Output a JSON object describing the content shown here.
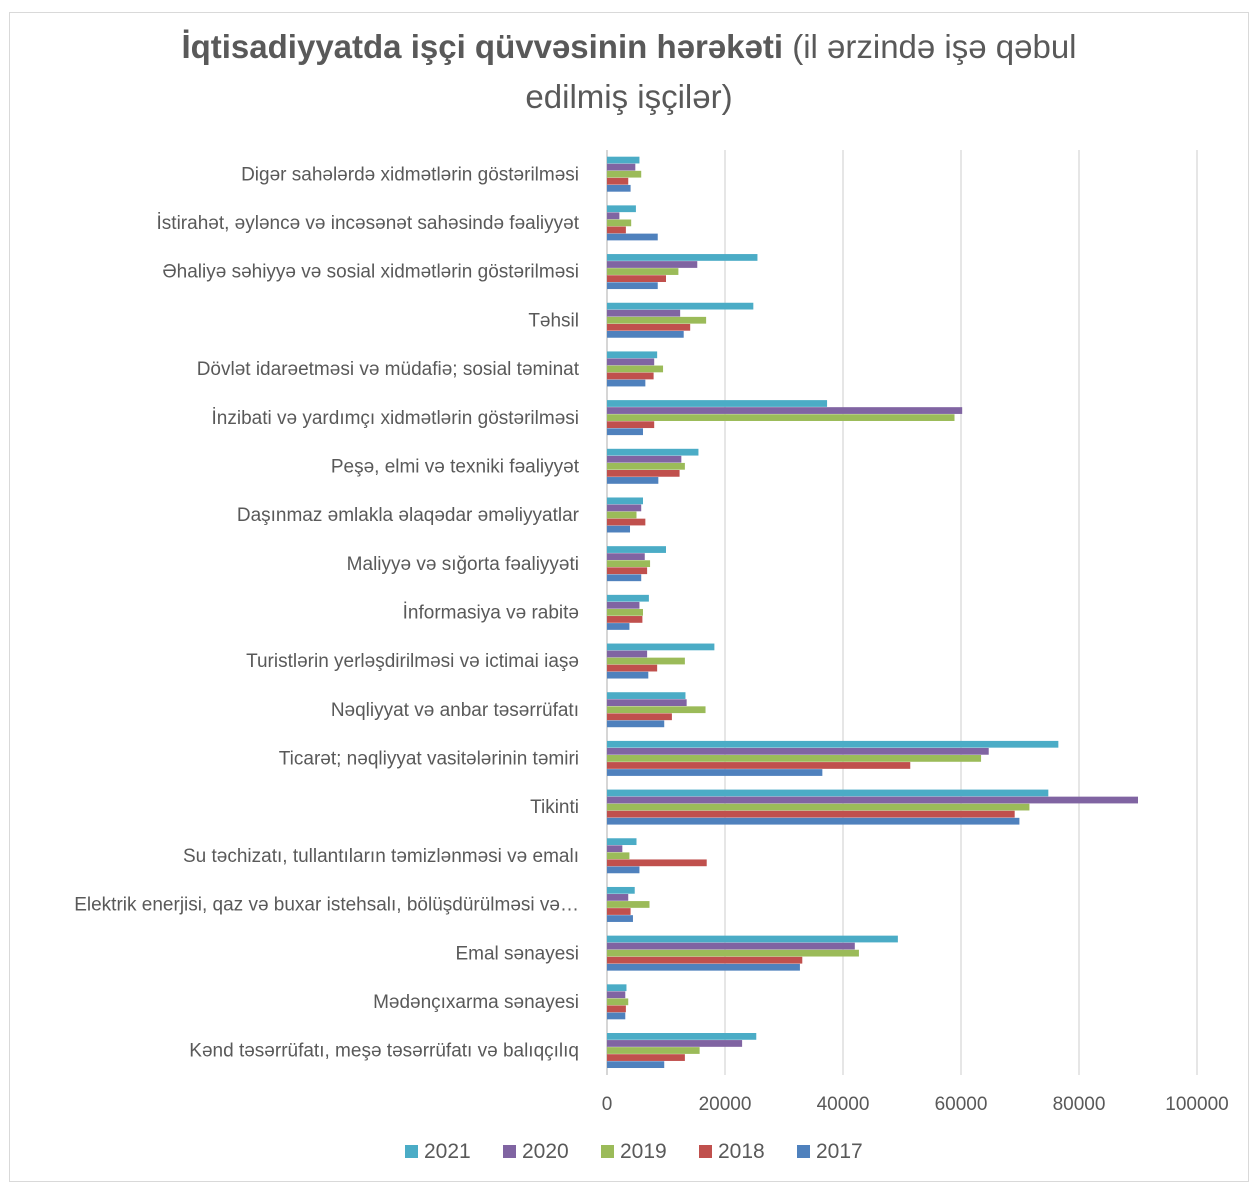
{
  "chart_data": {
    "type": "bar",
    "orientation": "horizontal",
    "title_bold": "İqtisadiyyatda işçi qüvvəsinin hərəkəti",
    "title_rest_line1": " (il ərzində işə qəbul",
    "title_rest_line2": "edilmiş işçilər)",
    "xlim": [
      0,
      100000
    ],
    "x_ticks": [
      "0",
      "20000",
      "40000",
      "60000",
      "80000",
      "100000"
    ],
    "x_tick_values": [
      0,
      20000,
      40000,
      60000,
      80000,
      100000
    ],
    "grid": "vertical",
    "legend_position": "bottom",
    "categories": [
      "Digər sahələrdə xidmətlərin göstərilməsi",
      "İstirahət, əyləncə və incəsənət sahəsində fəaliyyət",
      "Əhaliyə səhiyyə və sosial xidmətlərin göstərilməsi",
      "Təhsil",
      "Dövlət idarəetməsi və müdafiə; sosial təminat",
      "İnzibati və yardımçı xidmətlərin göstərilməsi",
      "Peşə, elmi və texniki fəaliyyət",
      "Daşınmaz əmlakla əlaqədar əməliyyatlar",
      "Maliyyə və sığorta fəaliyyəti",
      "İnformasiya və rabitə",
      "Turistlərin yerləşdirilməsi və ictimai iaşə",
      "Nəqliyyat və anbar təsərrüfatı",
      "Ticarət; nəqliyyat vasitələrinin  təmiri",
      "Tikinti",
      "Su təchizatı, tullantıların təmizlənməsi və emalı",
      "Elektrik enerjisi, qaz və buxar istehsalı, bölüşdürülməsi və…",
      "Emal sənayesi",
      "Mədənçıxarma sənayesi",
      "Kənd təsərrüfatı, meşə təsərrüfatı və balıqçılıq"
    ],
    "series": [
      {
        "name": "2021",
        "color": "#4bacc6",
        "values": [
          5500,
          4900,
          25500,
          24800,
          8500,
          37300,
          15500,
          6100,
          10000,
          7100,
          18200,
          13300,
          76500,
          74800,
          5000,
          4700,
          49300,
          3300,
          25300
        ]
      },
      {
        "name": "2020",
        "color": "#8064a2",
        "values": [
          4800,
          2100,
          15300,
          12400,
          8000,
          60200,
          12600,
          5800,
          6400,
          5500,
          6800,
          13500,
          64700,
          90000,
          2600,
          3600,
          42000,
          3100,
          22900
        ]
      },
      {
        "name": "2019",
        "color": "#9bbb59",
        "values": [
          5800,
          4100,
          12100,
          16800,
          9500,
          58900,
          13200,
          5000,
          7300,
          6100,
          13200,
          16700,
          63400,
          71600,
          3800,
          7200,
          42700,
          3600,
          15700
        ]
      },
      {
        "name": "2018",
        "color": "#c0504d",
        "values": [
          3600,
          3200,
          10000,
          14100,
          7900,
          8000,
          12300,
          6500,
          6800,
          6000,
          8500,
          11000,
          51400,
          69100,
          16900,
          4000,
          33100,
          3200,
          13200
        ]
      },
      {
        "name": "2017",
        "color": "#4f81bd",
        "values": [
          4000,
          8600,
          8600,
          13000,
          6500,
          6100,
          8700,
          3900,
          5800,
          3800,
          7000,
          9700,
          36500,
          69900,
          5500,
          4400,
          32700,
          3100,
          9700
        ]
      }
    ],
    "legend_order": [
      "2021",
      "2020",
      "2019",
      "2018",
      "2017"
    ],
    "grid_color": "#d9d9d9",
    "axis_color": "#bfbfbf"
  }
}
